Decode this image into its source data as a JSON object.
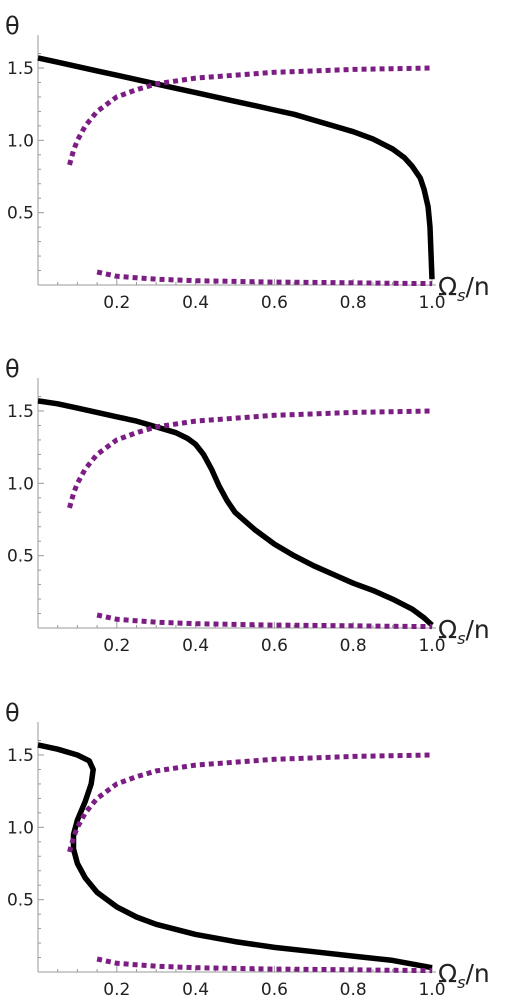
{
  "colors": {
    "solid": "#000000",
    "dotted": "#7b1d82",
    "axis": "#9a9a9a",
    "text": "#222222"
  },
  "panel_labels": {
    "ylabel": "θ",
    "xlabel_main": "Ω",
    "xlabel_sub": "s",
    "xlabel_tail": "/n"
  },
  "chart_data": [
    {
      "type": "line",
      "title": "",
      "xlabel": "Ωs/n",
      "ylabel": "θ",
      "xlim": [
        0,
        1.0
      ],
      "ylim": [
        0,
        1.6
      ],
      "xticks": [
        0.2,
        0.4,
        0.6,
        0.8,
        1.0
      ],
      "xtick_labels": [
        "0.2",
        "0.4",
        "0.6",
        "0.8",
        "1.0"
      ],
      "yticks": [
        0.5,
        1.0,
        1.5
      ],
      "ytick_labels": [
        "0.5",
        "1.0",
        "1.5"
      ],
      "grid": false,
      "series": [
        {
          "style": "solid",
          "x": [
            0.0,
            0.05,
            0.1,
            0.15,
            0.2,
            0.25,
            0.3,
            0.35,
            0.4,
            0.45,
            0.5,
            0.55,
            0.6,
            0.65,
            0.7,
            0.75,
            0.8,
            0.85,
            0.9,
            0.93,
            0.95,
            0.97,
            0.98,
            0.99,
            0.995,
            1.0
          ],
          "y": [
            1.57,
            1.54,
            1.51,
            1.48,
            1.45,
            1.42,
            1.39,
            1.36,
            1.33,
            1.3,
            1.27,
            1.24,
            1.21,
            1.18,
            1.14,
            1.1,
            1.06,
            1.01,
            0.94,
            0.88,
            0.82,
            0.74,
            0.66,
            0.54,
            0.4,
            0.04
          ]
        },
        {
          "style": "dotted",
          "x": [
            0.08,
            0.09,
            0.1,
            0.12,
            0.15,
            0.2,
            0.25,
            0.3,
            0.4,
            0.5,
            0.6,
            0.7,
            0.8,
            0.9,
            1.0
          ],
          "y": [
            0.83,
            0.93,
            1.0,
            1.1,
            1.2,
            1.3,
            1.35,
            1.39,
            1.43,
            1.45,
            1.47,
            1.48,
            1.49,
            1.495,
            1.5
          ]
        },
        {
          "style": "dotted",
          "x": [
            0.15,
            0.2,
            0.3,
            0.4,
            0.5,
            0.6,
            0.7,
            0.8,
            0.9,
            1.0
          ],
          "y": [
            0.09,
            0.06,
            0.04,
            0.03,
            0.025,
            0.02,
            0.018,
            0.015,
            0.012,
            0.01
          ]
        }
      ]
    },
    {
      "type": "line",
      "title": "",
      "xlabel": "Ωs/n",
      "ylabel": "θ",
      "xlim": [
        0,
        1.0
      ],
      "ylim": [
        0,
        1.6
      ],
      "xticks": [
        0.2,
        0.4,
        0.6,
        0.8,
        1.0
      ],
      "xtick_labels": [
        "0.2",
        "0.4",
        "0.6",
        "0.8",
        "1.0"
      ],
      "yticks": [
        0.5,
        1.0,
        1.5
      ],
      "ytick_labels": [
        "0.5",
        "1.0",
        "1.5"
      ],
      "grid": false,
      "series": [
        {
          "style": "solid",
          "x": [
            0.0,
            0.05,
            0.1,
            0.15,
            0.2,
            0.25,
            0.3,
            0.35,
            0.38,
            0.4,
            0.42,
            0.44,
            0.46,
            0.48,
            0.5,
            0.55,
            0.6,
            0.65,
            0.7,
            0.75,
            0.8,
            0.85,
            0.9,
            0.95,
            0.98,
            1.0
          ],
          "y": [
            1.57,
            1.55,
            1.52,
            1.49,
            1.46,
            1.43,
            1.39,
            1.35,
            1.31,
            1.27,
            1.2,
            1.1,
            0.98,
            0.88,
            0.8,
            0.68,
            0.58,
            0.5,
            0.43,
            0.37,
            0.31,
            0.26,
            0.2,
            0.13,
            0.07,
            0.02
          ]
        },
        {
          "style": "dotted",
          "x": [
            0.08,
            0.09,
            0.1,
            0.12,
            0.15,
            0.2,
            0.25,
            0.3,
            0.4,
            0.5,
            0.6,
            0.7,
            0.8,
            0.9,
            1.0
          ],
          "y": [
            0.83,
            0.93,
            1.0,
            1.1,
            1.2,
            1.3,
            1.35,
            1.39,
            1.43,
            1.45,
            1.47,
            1.48,
            1.49,
            1.495,
            1.5
          ]
        },
        {
          "style": "dotted",
          "x": [
            0.15,
            0.2,
            0.3,
            0.4,
            0.5,
            0.6,
            0.7,
            0.8,
            0.9,
            1.0
          ],
          "y": [
            0.09,
            0.06,
            0.04,
            0.03,
            0.025,
            0.02,
            0.018,
            0.015,
            0.012,
            0.01
          ]
        }
      ]
    },
    {
      "type": "line",
      "title": "",
      "xlabel": "Ωs/n",
      "ylabel": "θ",
      "xlim": [
        0,
        1.0
      ],
      "ylim": [
        0,
        1.6
      ],
      "xticks": [
        0.2,
        0.4,
        0.6,
        0.8,
        1.0
      ],
      "xtick_labels": [
        "0.2",
        "0.4",
        "0.6",
        "0.8",
        "1.0"
      ],
      "yticks": [
        0.5,
        1.0,
        1.5
      ],
      "ytick_labels": [
        "0.5",
        "1.0",
        "1.5"
      ],
      "grid": false,
      "series": [
        {
          "style": "solid",
          "x": [
            0.0,
            0.05,
            0.1,
            0.13,
            0.14,
            0.135,
            0.12,
            0.1,
            0.09,
            0.09,
            0.1,
            0.12,
            0.15,
            0.2,
            0.25,
            0.3,
            0.4,
            0.5,
            0.6,
            0.7,
            0.8,
            0.9,
            1.0
          ],
          "y": [
            1.57,
            1.54,
            1.5,
            1.46,
            1.4,
            1.3,
            1.18,
            1.05,
            0.95,
            0.85,
            0.75,
            0.65,
            0.55,
            0.45,
            0.38,
            0.33,
            0.26,
            0.21,
            0.17,
            0.14,
            0.11,
            0.08,
            0.03
          ]
        },
        {
          "style": "dotted",
          "x": [
            0.08,
            0.09,
            0.1,
            0.12,
            0.15,
            0.2,
            0.25,
            0.3,
            0.4,
            0.5,
            0.6,
            0.7,
            0.8,
            0.9,
            1.0
          ],
          "y": [
            0.83,
            0.93,
            1.0,
            1.1,
            1.2,
            1.3,
            1.35,
            1.39,
            1.43,
            1.45,
            1.47,
            1.48,
            1.49,
            1.495,
            1.5
          ]
        },
        {
          "style": "dotted",
          "x": [
            0.15,
            0.2,
            0.3,
            0.4,
            0.5,
            0.6,
            0.7,
            0.8,
            0.9,
            1.0
          ],
          "y": [
            0.09,
            0.06,
            0.04,
            0.03,
            0.025,
            0.02,
            0.018,
            0.015,
            0.012,
            0.01
          ]
        }
      ]
    }
  ]
}
